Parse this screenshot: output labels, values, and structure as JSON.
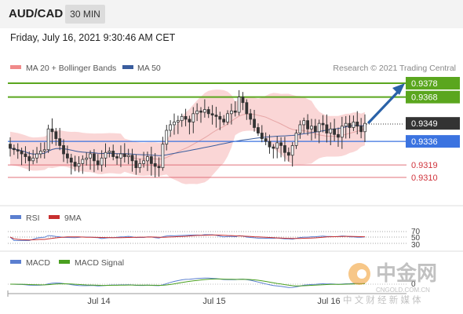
{
  "header": {
    "symbol": "AUD/CAD",
    "timeframe": "30 MIN"
  },
  "datetime": "Friday, July 16, 2021 9:30:46 AM CET",
  "legend": {
    "ma20": "MA 20 + Bollinger Bands",
    "ma50": "MA 50",
    "credit": "Research © 2021 Trading Central"
  },
  "colors": {
    "resistance": "#5aa61e",
    "support": "#e0707a",
    "pivot": "#3b73e0",
    "current": "#333333",
    "candle": "#333333",
    "bollinger": "#f8c8c8",
    "ma50": "#3a5d9e",
    "ma20": "#e0a0a0",
    "arrow": "#2a62a8",
    "rsi": "#5b7fd0",
    "rsi_ma": "#c83030",
    "macd": "#5b7fd0",
    "macd_signal": "#4aa020"
  },
  "levels": [
    {
      "value": "0.9378",
      "type": "resistance"
    },
    {
      "value": "0.9368",
      "type": "resistance"
    },
    {
      "value": "0.9349",
      "type": "current"
    },
    {
      "value": "0.9336",
      "type": "pivot"
    },
    {
      "value": "0.9319",
      "type": "support"
    },
    {
      "value": "0.9310",
      "type": "support"
    }
  ],
  "rsi_panel": {
    "label": "RSI",
    "ma_label": "9MA",
    "levels": [
      "70",
      "50",
      "30"
    ]
  },
  "macd_panel": {
    "label": "MACD",
    "signal_label": "MACD Signal",
    "zero_label": "0"
  },
  "x_axis": {
    "ticks": [
      "Jul 14",
      "Jul 15",
      "Jul 16"
    ]
  },
  "watermark": {
    "brand": "中金网",
    "url": "CNGOLD.COM.CN",
    "slogan": "中 文 财 经 新 媒 体"
  },
  "chart_data": {
    "type": "candlestick",
    "unit": "AUD/CAD price",
    "series_note": "approximate closes per 30-min bar",
    "closes": [
      0.9331,
      0.933,
      0.9329,
      0.9327,
      0.9325,
      0.9322,
      0.9324,
      0.9327,
      0.9329,
      0.933,
      0.9345,
      0.9343,
      0.9338,
      0.9333,
      0.9327,
      0.9324,
      0.9321,
      0.9318,
      0.932,
      0.9323,
      0.9324,
      0.9327,
      0.9322,
      0.9319,
      0.9324,
      0.9328,
      0.9329,
      0.9325,
      0.9324,
      0.9327,
      0.9325,
      0.9326,
      0.9322,
      0.9317,
      0.932,
      0.9322,
      0.9325,
      0.932,
      0.9318,
      0.9317,
      0.9334,
      0.9344,
      0.9348,
      0.935,
      0.9351,
      0.9354,
      0.9352,
      0.935,
      0.9356,
      0.9358,
      0.9357,
      0.9359,
      0.9356,
      0.9355,
      0.9354,
      0.9352,
      0.935,
      0.9356,
      0.9358,
      0.9357,
      0.9368,
      0.9364,
      0.9356,
      0.9352,
      0.9346,
      0.9342,
      0.9338,
      0.9336,
      0.9332,
      0.9331,
      0.9335,
      0.9333,
      0.9328,
      0.9326,
      0.9333,
      0.9342,
      0.9348,
      0.9351,
      0.9345,
      0.9347,
      0.9343,
      0.9349,
      0.9348,
      0.9342,
      0.9345,
      0.9341,
      0.9339,
      0.9347,
      0.9349,
      0.9346,
      0.935,
      0.9347,
      0.9343,
      0.9349
    ]
  }
}
